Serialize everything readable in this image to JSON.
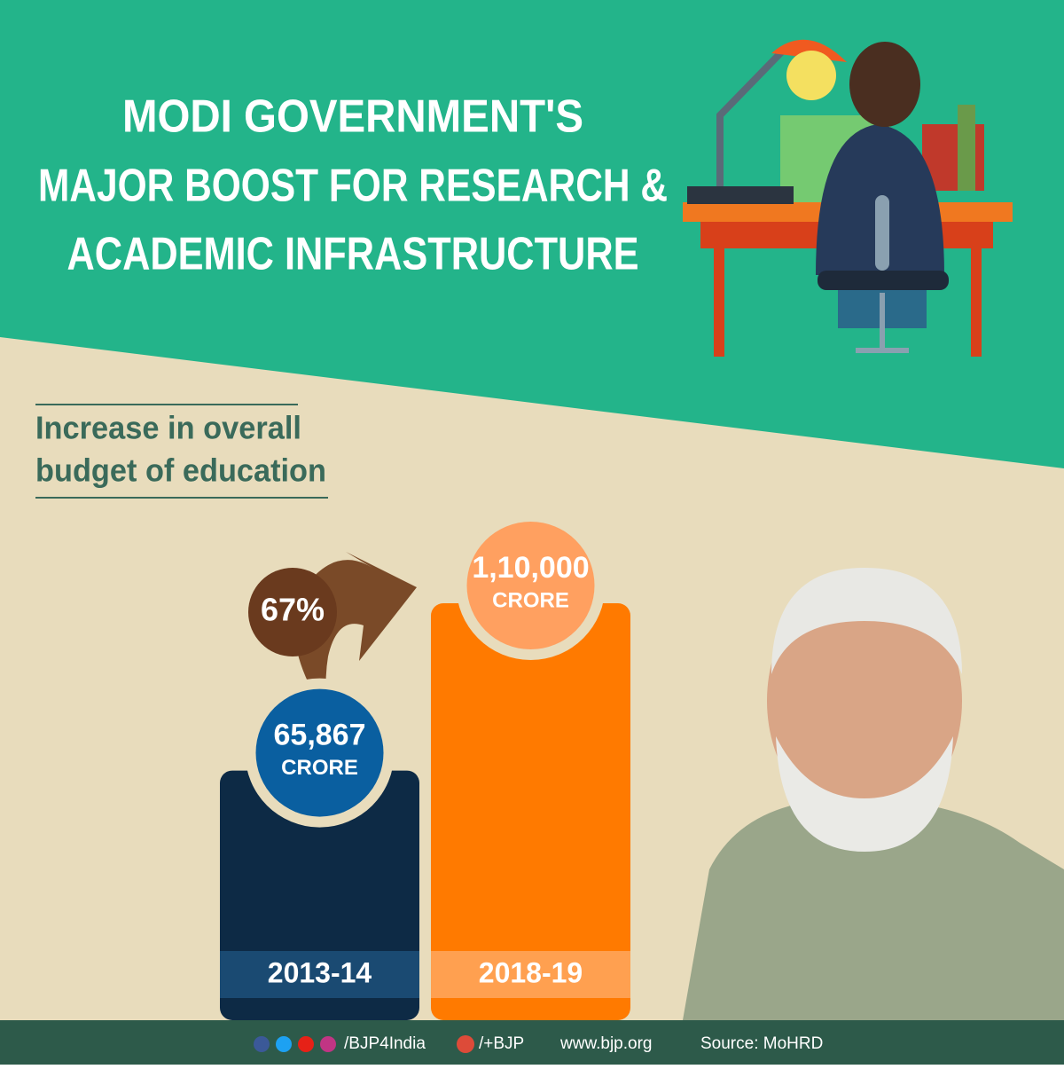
{
  "header": {
    "title_lines": [
      "MODI GOVERNMENT'S",
      "MAJOR BOOST FOR RESEARCH &",
      "ACADEMIC INFRASTRUCTURE"
    ]
  },
  "chart_data": {
    "type": "bar",
    "title_lines": [
      "Increase in overall",
      "budget of education"
    ],
    "categories": [
      "2013-14",
      "2018-19"
    ],
    "values": [
      65867,
      110000
    ],
    "value_labels": [
      "65,867",
      "1,10,000"
    ],
    "unit_label": "CRORE",
    "annotation": "67%",
    "colors": [
      "#0d2a45",
      "#ff7a00"
    ],
    "circle_colors": [
      "#0a5fa0",
      "#ffa060"
    ],
    "band_colors": [
      "#1a4a72",
      "#ffa050"
    ]
  },
  "footer": {
    "social_handle": "/BJP4India",
    "gplus_handle": "/+BJP",
    "website": "www.bjp.org",
    "source": "Source: MoHRD"
  }
}
